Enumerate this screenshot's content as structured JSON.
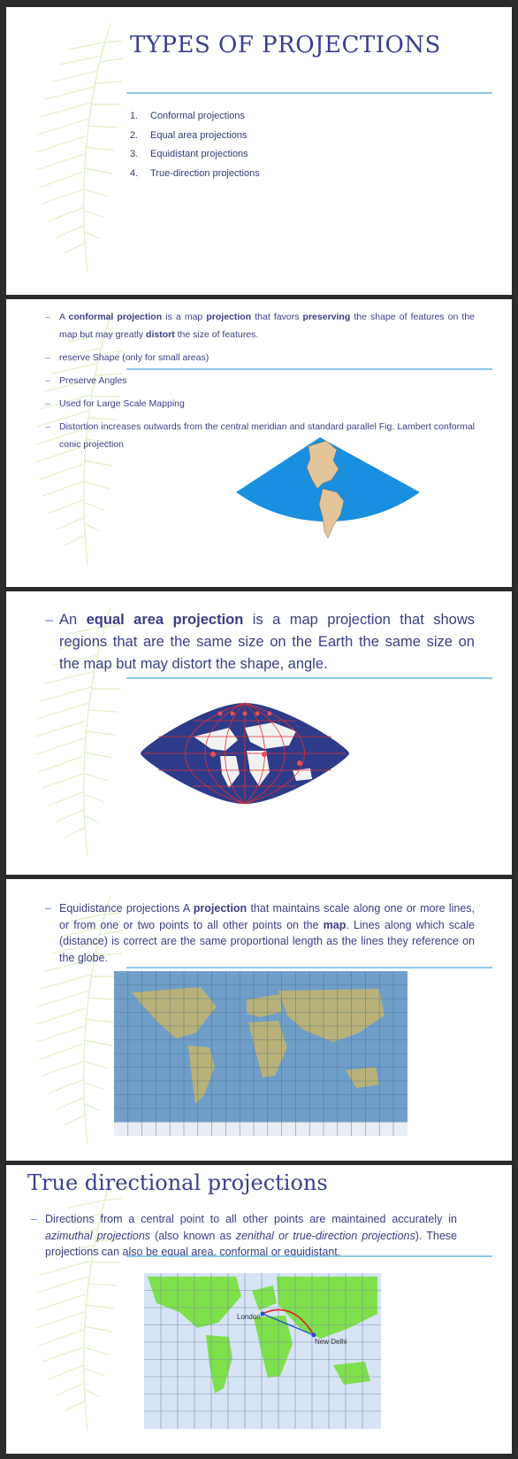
{
  "slide1": {
    "title": "TYPES OF PROJECTIONS",
    "items": [
      {
        "num": "1.",
        "text": "Conformal projections"
      },
      {
        "num": "2.",
        "text": "Equal area projections"
      },
      {
        "num": "3.",
        "text": "Equidistant projections"
      },
      {
        "num": "4.",
        "text": "True-direction projections"
      }
    ]
  },
  "slide2": {
    "b1": {
      "t1": "A ",
      "t2": "conformal projection",
      "t3": " is a map ",
      "t4": "projection",
      "t5": " that favors ",
      "t6": "preserving",
      "t7": " the shape of features on the map but may greatly ",
      "t8": "distort",
      "t9": " the size of features."
    },
    "b2": "reserve Shape (only for small areas)",
    "b3": "Preserve Angles",
    "b4": "Used for Large Scale Mapping",
    "b5": "Distortion increases outwards from the central meridian and standard parallel Fig. Lambert conformal conic projection"
  },
  "slide3": {
    "t1": "An ",
    "t2": "equal area projection",
    "t3": " is a map projection that shows regions that are the same size on the Earth the same size on the map but may distort the shape, angle."
  },
  "slide4": {
    "t1": "Equidistance projections A ",
    "t2": "projection",
    "t3": " that maintains scale along one or more lines, or from one or two points to all other points on the ",
    "t4": "map",
    "t5": ". Lines along which scale (distance) is correct are the same proportional length as the lines they reference on the globe."
  },
  "slide5": {
    "title": "True directional projections",
    "t1": "Directions from a central point to all other points are maintained accurately in ",
    "t2": "azimuthal projections",
    "t3": " (also known as ",
    "t4": "zenithal or true-direction projections",
    "t5": "). These projections can also be equal area, conformal or equidistant.",
    "map_labels": {
      "london": "London",
      "delhi": "New Delhi"
    }
  },
  "dash": "–",
  "colors": {
    "title": "#3a3f8f",
    "text": "#3a3d86",
    "rule": "#8fc9ec",
    "frond": "#c9e7a3"
  }
}
